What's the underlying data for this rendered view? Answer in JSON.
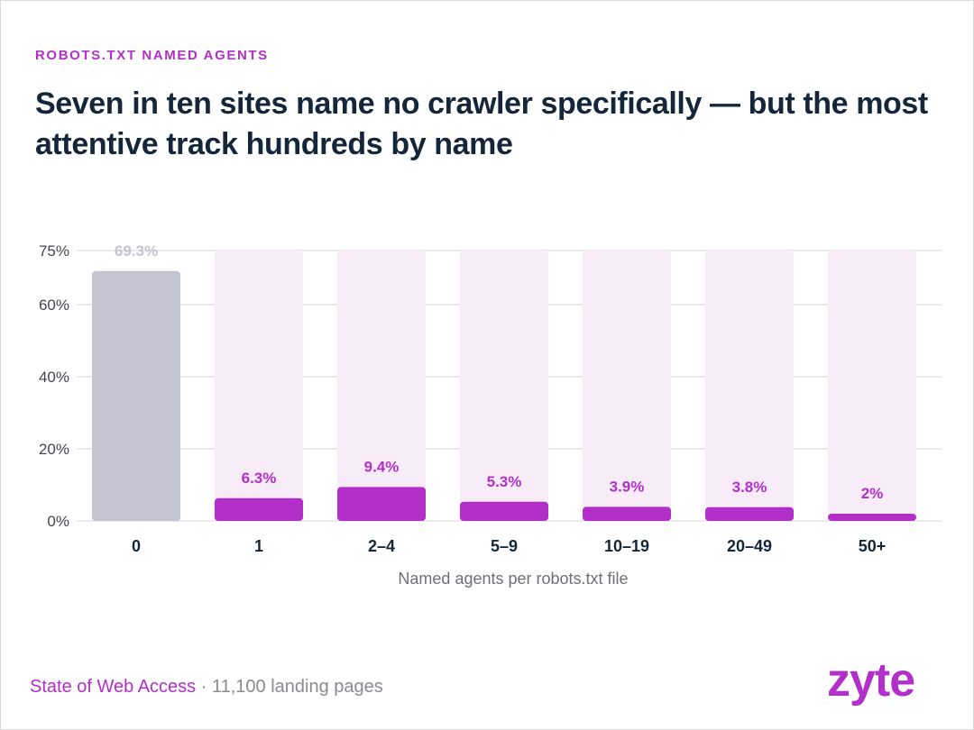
{
  "eyebrow": "ROBOTS.TXT NAMED AGENTS",
  "headline": "Seven in ten sites name no crawler specifically — but the most attentive track hundreds by name",
  "footer": {
    "source": "State of Web Access",
    "separator": " · ",
    "note": "11,100 landing pages"
  },
  "brand": "zyte",
  "colors": {
    "accent": "#b22fc9",
    "bar_highlight": "#b22fc9",
    "bar_muted": "#c3c3d2",
    "track": "#f8ecf9",
    "label_muted": "#c3c3d2",
    "grid": "#e4e4e8",
    "headline": "#14263a"
  },
  "chart_data": {
    "type": "bar",
    "categories": [
      "0",
      "1",
      "2–4",
      "5–9",
      "10–19",
      "20–49",
      "50+"
    ],
    "values": [
      69.3,
      6.3,
      9.4,
      5.3,
      3.9,
      3.8,
      2
    ],
    "value_labels": [
      "69.3%",
      "6.3%",
      "9.4%",
      "5.3%",
      "3.9%",
      "3.8%",
      "2%"
    ],
    "highlight": [
      false,
      true,
      true,
      true,
      true,
      true,
      true
    ],
    "xlabel": "Named agents per robots.txt file",
    "ylabel": "",
    "ylim": [
      0,
      75
    ],
    "yticks": [
      0,
      20,
      40,
      60,
      75
    ],
    "ytick_labels": [
      "0%",
      "20%",
      "40%",
      "60%",
      "75%"
    ],
    "grid": true,
    "legend": "none"
  }
}
